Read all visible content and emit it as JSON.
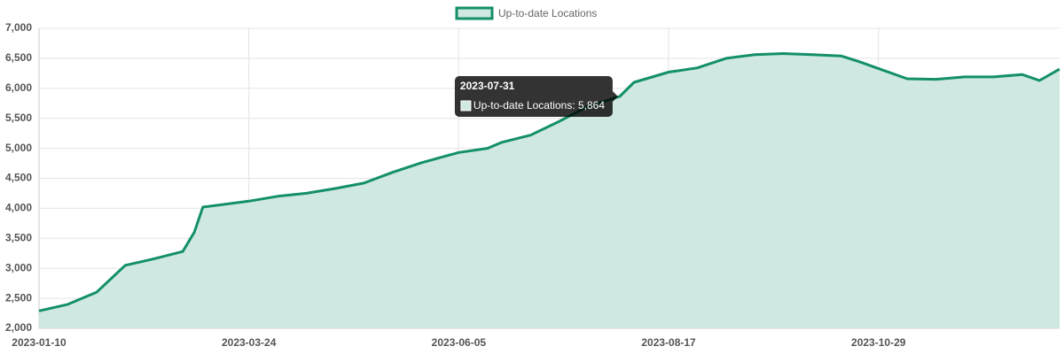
{
  "chart_data": {
    "type": "line",
    "x": [
      "2023-01-10",
      "2023-01-20",
      "2023-01-30",
      "2023-02-09",
      "2023-02-19",
      "2023-03-01",
      "2023-03-05",
      "2023-03-08",
      "2023-03-24",
      "2023-04-03",
      "2023-04-13",
      "2023-04-23",
      "2023-05-03",
      "2023-05-13",
      "2023-05-23",
      "2023-06-05",
      "2023-06-15",
      "2023-06-20",
      "2023-06-30",
      "2023-07-10",
      "2023-07-20",
      "2023-07-31",
      "2023-08-05",
      "2023-08-17",
      "2023-08-27",
      "2023-09-06",
      "2023-09-16",
      "2023-09-26",
      "2023-10-06",
      "2023-10-16",
      "2023-10-22",
      "2023-10-29",
      "2023-11-08",
      "2023-11-18",
      "2023-11-28",
      "2023-12-08",
      "2023-12-18",
      "2023-12-24",
      "2023-12-31"
    ],
    "series": [
      {
        "name": "Up-to-date Locations",
        "color": "#138f69",
        "fill": "#cfe8e1",
        "values": [
          2290,
          2400,
          2600,
          3050,
          3160,
          3280,
          3600,
          4020,
          4120,
          4200,
          4250,
          4330,
          4420,
          4600,
          4760,
          4930,
          5000,
          5100,
          5220,
          5450,
          5700,
          5864,
          6100,
          6270,
          6340,
          6500,
          6560,
          6580,
          6560,
          6540,
          6450,
          6330,
          6160,
          6150,
          6190,
          6190,
          6230,
          6130,
          6320
        ]
      }
    ],
    "xlim": [
      "2023-01-10",
      "2023-12-31"
    ],
    "xticks": [
      "2023-01-10",
      "2023-03-24",
      "2023-06-05",
      "2023-08-17",
      "2023-10-29"
    ],
    "ylim": [
      2000,
      7000
    ],
    "yticks": [
      {
        "value": 2000,
        "label": "2,000"
      },
      {
        "value": 2500,
        "label": "2,500"
      },
      {
        "value": 3000,
        "label": "3,000"
      },
      {
        "value": 3500,
        "label": "3,500"
      },
      {
        "value": 4000,
        "label": "4,000"
      },
      {
        "value": 4500,
        "label": "4,500"
      },
      {
        "value": 5000,
        "label": "5,000"
      },
      {
        "value": 5500,
        "label": "5,500"
      },
      {
        "value": 6000,
        "label": "6,000"
      },
      {
        "value": 6500,
        "label": "6,500"
      },
      {
        "value": 7000,
        "label": "7,000"
      }
    ],
    "grid": true,
    "legend": "top",
    "tooltip": {
      "title": "2023-07-31",
      "label": "Up-to-date Locations: 5,864"
    }
  }
}
